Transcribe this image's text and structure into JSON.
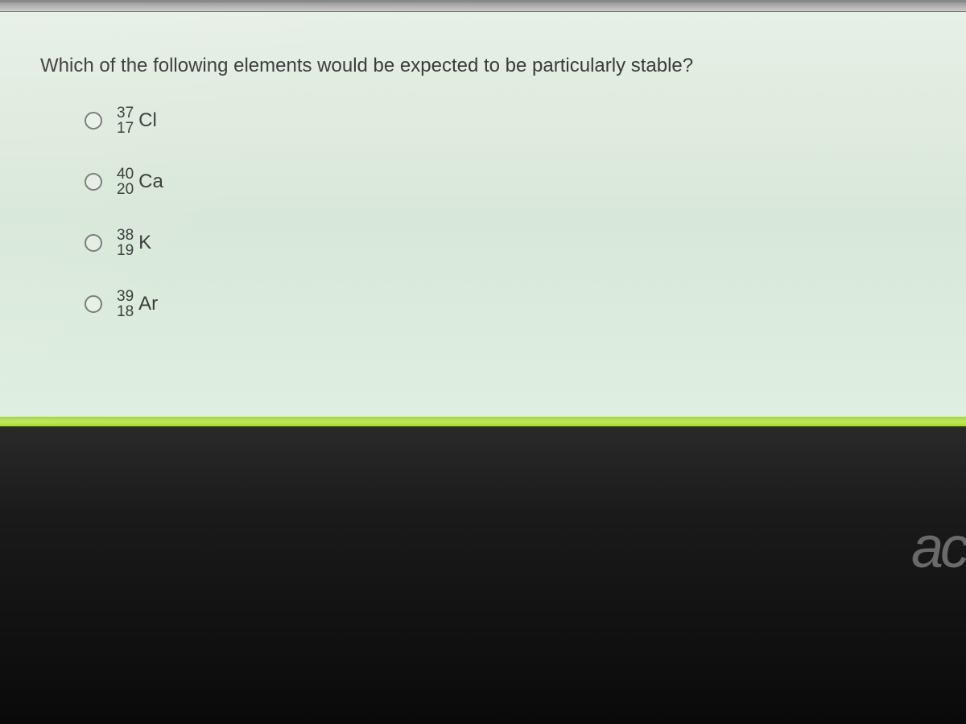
{
  "question": {
    "text": "Which of the following elements would be expected to be particularly stable?",
    "text_color": "#3a3a3a",
    "fontsize": 24
  },
  "options": [
    {
      "mass": "37",
      "atomic": "17",
      "symbol": "Cl",
      "selected": false
    },
    {
      "mass": "40",
      "atomic": "20",
      "symbol": "Ca",
      "selected": false
    },
    {
      "mass": "38",
      "atomic": "19",
      "symbol": "K",
      "selected": false
    },
    {
      "mass": "39",
      "atomic": "18",
      "symbol": "Ar",
      "selected": false
    }
  ],
  "styling": {
    "screen_bg_gradient": [
      "#e8f0e8",
      "#d8e8d8",
      "#e0f0e0"
    ],
    "bezel_bg": "#1a1a1a",
    "accent_line_color": "#9fd838",
    "radio_border_color": "#7a7a7a",
    "option_fontsize": 22,
    "number_fontsize": 19
  },
  "monitor": {
    "brand_fragment": "ac",
    "brand_color": "#6a6a6a"
  }
}
